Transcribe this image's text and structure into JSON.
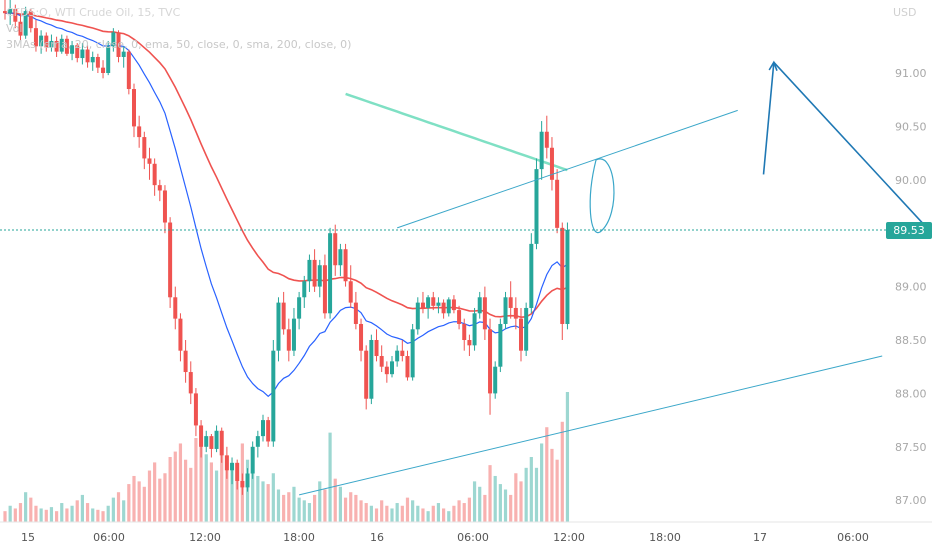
{
  "legend": {
    "symbol_line": "CFDS:O, WTI Crude Oil, 15, TVC",
    "volume_label": "Vol",
    "ma_line": "3MAs (ema, 20, close, 0, ema, 50, close, 0, sma, 200, close, 0)"
  },
  "currency_label": "USD",
  "last_price_label": "89.53",
  "colors": {
    "up": "#26a69a",
    "down": "#ef5350",
    "ema20": "#2962ff",
    "ema50": "#ef5350",
    "sma200": "#7fe0c4",
    "drawing_thin": "#3ba7c9",
    "drawing_arrow": "#1f78b4",
    "price_tag_bg": "#26a69a"
  },
  "chart_data": {
    "type": "candlestick",
    "title": "CFDS:O, WTI Crude Oil, 15, TVC",
    "price_axis": {
      "ticks": [
        "91.00",
        "90.50",
        "90.00",
        "89.00",
        "88.50",
        "88.00",
        "87.50",
        "87.00"
      ],
      "range": [
        86.75,
        91.55
      ],
      "unit": "USD"
    },
    "time_axis": {
      "ticks": [
        "15",
        "06:00",
        "12:00",
        "18:00",
        "16",
        "06:00",
        "12:00",
        "18:00",
        "17",
        "06:00"
      ]
    },
    "last_price": 89.53,
    "candles": [
      [
        91.58,
        91.72,
        91.5,
        91.56
      ],
      [
        91.56,
        91.7,
        91.45,
        91.6
      ],
      [
        91.6,
        91.64,
        91.42,
        91.48
      ],
      [
        91.48,
        91.55,
        91.3,
        91.35
      ],
      [
        91.35,
        91.62,
        91.32,
        91.58
      ],
      [
        91.58,
        91.6,
        91.38,
        91.42
      ],
      [
        91.42,
        91.5,
        91.2,
        91.25
      ],
      [
        91.25,
        91.4,
        91.18,
        91.35
      ],
      [
        91.35,
        91.38,
        91.2,
        91.24
      ],
      [
        91.24,
        91.36,
        91.2,
        91.3
      ],
      [
        91.3,
        91.34,
        91.15,
        91.2
      ],
      [
        91.2,
        91.36,
        91.18,
        91.32
      ],
      [
        91.32,
        91.35,
        91.16,
        91.18
      ],
      [
        91.18,
        91.3,
        91.12,
        91.26
      ],
      [
        91.26,
        91.28,
        91.1,
        91.14
      ],
      [
        91.14,
        91.28,
        91.08,
        91.22
      ],
      [
        91.22,
        91.26,
        91.05,
        91.1
      ],
      [
        91.1,
        91.2,
        91.02,
        91.15
      ],
      [
        91.15,
        91.18,
        91.0,
        91.05
      ],
      [
        91.05,
        91.12,
        90.95,
        91.0
      ],
      [
        91.0,
        91.3,
        90.98,
        91.25
      ],
      [
        91.25,
        91.42,
        91.2,
        91.38
      ],
      [
        91.38,
        91.4,
        91.1,
        91.15
      ],
      [
        91.15,
        91.25,
        91.05,
        91.2
      ],
      [
        91.2,
        91.22,
        90.8,
        90.85
      ],
      [
        90.85,
        90.9,
        90.4,
        90.5
      ],
      [
        90.5,
        90.6,
        90.3,
        90.4
      ],
      [
        90.4,
        90.45,
        90.1,
        90.2
      ],
      [
        90.2,
        90.3,
        90.0,
        90.15
      ],
      [
        90.15,
        90.2,
        89.85,
        89.95
      ],
      [
        89.95,
        90.0,
        89.8,
        89.9
      ],
      [
        89.9,
        89.95,
        89.5,
        89.6
      ],
      [
        89.6,
        89.65,
        88.8,
        88.9
      ],
      [
        88.9,
        89.0,
        88.6,
        88.7
      ],
      [
        88.7,
        88.75,
        88.3,
        88.4
      ],
      [
        88.4,
        88.5,
        88.1,
        88.2
      ],
      [
        88.2,
        88.3,
        87.9,
        88.0
      ],
      [
        88.0,
        88.05,
        87.6,
        87.7
      ],
      [
        87.7,
        87.75,
        87.4,
        87.5
      ],
      [
        87.5,
        87.65,
        87.45,
        87.6
      ],
      [
        87.6,
        87.62,
        87.4,
        87.48
      ],
      [
        87.48,
        87.7,
        87.45,
        87.65
      ],
      [
        87.65,
        87.68,
        87.35,
        87.42
      ],
      [
        87.42,
        87.5,
        87.2,
        87.28
      ],
      [
        87.28,
        87.4,
        87.15,
        87.35
      ],
      [
        87.35,
        87.38,
        87.1,
        87.18
      ],
      [
        87.18,
        87.25,
        87.05,
        87.12
      ],
      [
        87.12,
        87.3,
        87.08,
        87.25
      ],
      [
        87.25,
        87.55,
        87.2,
        87.5
      ],
      [
        87.5,
        87.65,
        87.4,
        87.6
      ],
      [
        87.6,
        87.8,
        87.55,
        87.75
      ],
      [
        87.75,
        87.78,
        87.5,
        87.55
      ],
      [
        87.55,
        88.5,
        87.5,
        88.4
      ],
      [
        88.4,
        88.9,
        88.3,
        88.85
      ],
      [
        88.85,
        88.95,
        88.55,
        88.6
      ],
      [
        88.6,
        88.7,
        88.3,
        88.4
      ],
      [
        88.4,
        88.8,
        88.35,
        88.7
      ],
      [
        88.7,
        88.95,
        88.6,
        88.9
      ],
      [
        88.9,
        89.1,
        88.8,
        89.05
      ],
      [
        89.05,
        89.3,
        88.95,
        89.25
      ],
      [
        89.25,
        89.35,
        88.95,
        89.0
      ],
      [
        89.0,
        89.25,
        88.9,
        89.2
      ],
      [
        89.2,
        89.3,
        88.7,
        88.75
      ],
      [
        88.75,
        89.55,
        88.7,
        89.5
      ],
      [
        89.5,
        89.58,
        89.1,
        89.2
      ],
      [
        89.2,
        89.4,
        89.1,
        89.35
      ],
      [
        89.35,
        89.4,
        89.0,
        89.05
      ],
      [
        89.05,
        89.2,
        88.8,
        88.85
      ],
      [
        88.85,
        88.95,
        88.6,
        88.65
      ],
      [
        88.65,
        88.7,
        88.3,
        88.4
      ],
      [
        88.4,
        88.45,
        87.85,
        87.95
      ],
      [
        87.95,
        88.55,
        87.9,
        88.5
      ],
      [
        88.5,
        88.6,
        88.3,
        88.35
      ],
      [
        88.35,
        88.45,
        88.2,
        88.25
      ],
      [
        88.25,
        88.3,
        88.1,
        88.18
      ],
      [
        88.18,
        88.35,
        88.15,
        88.3
      ],
      [
        88.3,
        88.45,
        88.25,
        88.4
      ],
      [
        88.4,
        88.5,
        88.3,
        88.35
      ],
      [
        88.35,
        88.4,
        88.12,
        88.15
      ],
      [
        88.15,
        88.65,
        88.12,
        88.6
      ],
      [
        88.6,
        88.9,
        88.55,
        88.85
      ],
      [
        88.85,
        88.95,
        88.75,
        88.8
      ],
      [
        88.8,
        88.92,
        88.7,
        88.9
      ],
      [
        88.9,
        88.95,
        88.78,
        88.82
      ],
      [
        88.82,
        88.9,
        88.75,
        88.85
      ],
      [
        88.85,
        88.88,
        88.7,
        88.75
      ],
      [
        88.75,
        88.9,
        88.72,
        88.88
      ],
      [
        88.88,
        88.92,
        88.75,
        88.78
      ],
      [
        88.78,
        88.82,
        88.6,
        88.65
      ],
      [
        88.65,
        88.7,
        88.4,
        88.5
      ],
      [
        88.5,
        88.55,
        88.35,
        88.45
      ],
      [
        88.45,
        88.8,
        88.4,
        88.75
      ],
      [
        88.75,
        88.95,
        88.7,
        88.9
      ],
      [
        88.9,
        89.0,
        88.5,
        88.6
      ],
      [
        88.6,
        88.7,
        87.8,
        88.0
      ],
      [
        88.0,
        88.3,
        87.95,
        88.25
      ],
      [
        88.25,
        88.7,
        88.2,
        88.65
      ],
      [
        88.65,
        88.95,
        88.6,
        88.9
      ],
      [
        88.9,
        89.05,
        88.7,
        88.8
      ],
      [
        88.8,
        88.9,
        88.6,
        88.7
      ],
      [
        88.7,
        88.8,
        88.3,
        88.4
      ],
      [
        88.4,
        88.85,
        88.35,
        88.8
      ],
      [
        88.8,
        89.5,
        88.75,
        89.4
      ],
      [
        89.4,
        90.2,
        89.35,
        90.1
      ],
      [
        90.1,
        90.55,
        90.0,
        90.45
      ],
      [
        90.45,
        90.6,
        90.2,
        90.3
      ],
      [
        90.3,
        90.4,
        89.9,
        90.0
      ],
      [
        90.0,
        90.1,
        89.5,
        89.55
      ],
      [
        89.55,
        89.6,
        88.5,
        88.65
      ],
      [
        88.65,
        89.6,
        88.6,
        89.53
      ]
    ],
    "volume": [
      8,
      12,
      10,
      14,
      22,
      18,
      12,
      10,
      9,
      11,
      8,
      14,
      10,
      12,
      16,
      20,
      14,
      10,
      9,
      8,
      12,
      18,
      22,
      16,
      28,
      34,
      30,
      26,
      38,
      44,
      32,
      36,
      48,
      52,
      58,
      46,
      40,
      62,
      56,
      50,
      44,
      38,
      52,
      48,
      42,
      36,
      58,
      46,
      40,
      34,
      30,
      28,
      36,
      24,
      20,
      22,
      26,
      18,
      16,
      14,
      20,
      30,
      24,
      66,
      32,
      26,
      18,
      22,
      20,
      16,
      14,
      12,
      10,
      16,
      12,
      10,
      14,
      12,
      18,
      16,
      12,
      10,
      8,
      12,
      14,
      10,
      8,
      12,
      16,
      14,
      18,
      30,
      26,
      20,
      42,
      34,
      28,
      24,
      20,
      36,
      30,
      40,
      48,
      40,
      58,
      70,
      54,
      46,
      74,
      96
    ],
    "volume_colors": "by candle direction",
    "moving_averages": [
      {
        "name": "ema 20"
      },
      {
        "name": "ema 50"
      },
      {
        "name": "sma 200"
      }
    ],
    "drawings": [
      {
        "type": "trendline",
        "from": [
          57,
          87.05
        ],
        "to": [
          170,
          88.35
        ]
      },
      {
        "type": "trendline",
        "from": [
          76,
          89.55
        ],
        "to": [
          142,
          90.65
        ]
      },
      {
        "type": "arrow",
        "from": [
          147,
          90.05
        ],
        "to": [
          149,
          91.1
        ]
      },
      {
        "type": "arrow",
        "from": [
          149,
          91.1
        ],
        "to": [
          194,
          88.75
        ]
      }
    ]
  }
}
